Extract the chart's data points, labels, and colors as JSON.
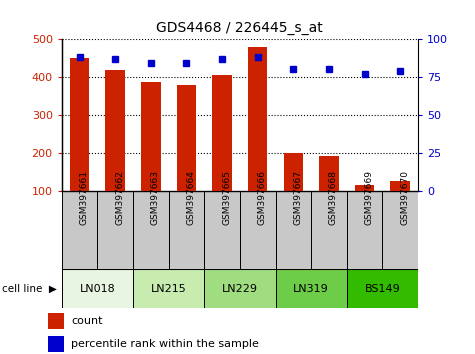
{
  "title": "GDS4468 / 226445_s_at",
  "samples": [
    "GSM397661",
    "GSM397662",
    "GSM397663",
    "GSM397664",
    "GSM397665",
    "GSM397666",
    "GSM397667",
    "GSM397668",
    "GSM397669",
    "GSM397670"
  ],
  "counts": [
    450,
    418,
    387,
    380,
    404,
    478,
    200,
    192,
    117,
    128
  ],
  "percentile_ranks": [
    88,
    87,
    84,
    84,
    87,
    88,
    80,
    80,
    77,
    79
  ],
  "cell_lines": [
    {
      "name": "LN018",
      "start": 0,
      "end": 2,
      "color": "#e8f5e0"
    },
    {
      "name": "LN215",
      "start": 2,
      "end": 4,
      "color": "#c8ecb0"
    },
    {
      "name": "LN229",
      "start": 4,
      "end": 6,
      "color": "#a0dd80"
    },
    {
      "name": "LN319",
      "start": 6,
      "end": 8,
      "color": "#6dcc48"
    },
    {
      "name": "BS149",
      "start": 8,
      "end": 10,
      "color": "#33bb00"
    }
  ],
  "bar_color": "#cc2200",
  "dot_color": "#0000cc",
  "ylim_left": [
    100,
    500
  ],
  "ylim_right": [
    0,
    100
  ],
  "yticks_left": [
    100,
    200,
    300,
    400,
    500
  ],
  "yticks_right": [
    0,
    25,
    50,
    75,
    100
  ],
  "bar_width": 0.55,
  "tick_label_bg": "#c8c8c8",
  "legend_count_color": "#cc2200",
  "legend_pct_color": "#0000cc"
}
